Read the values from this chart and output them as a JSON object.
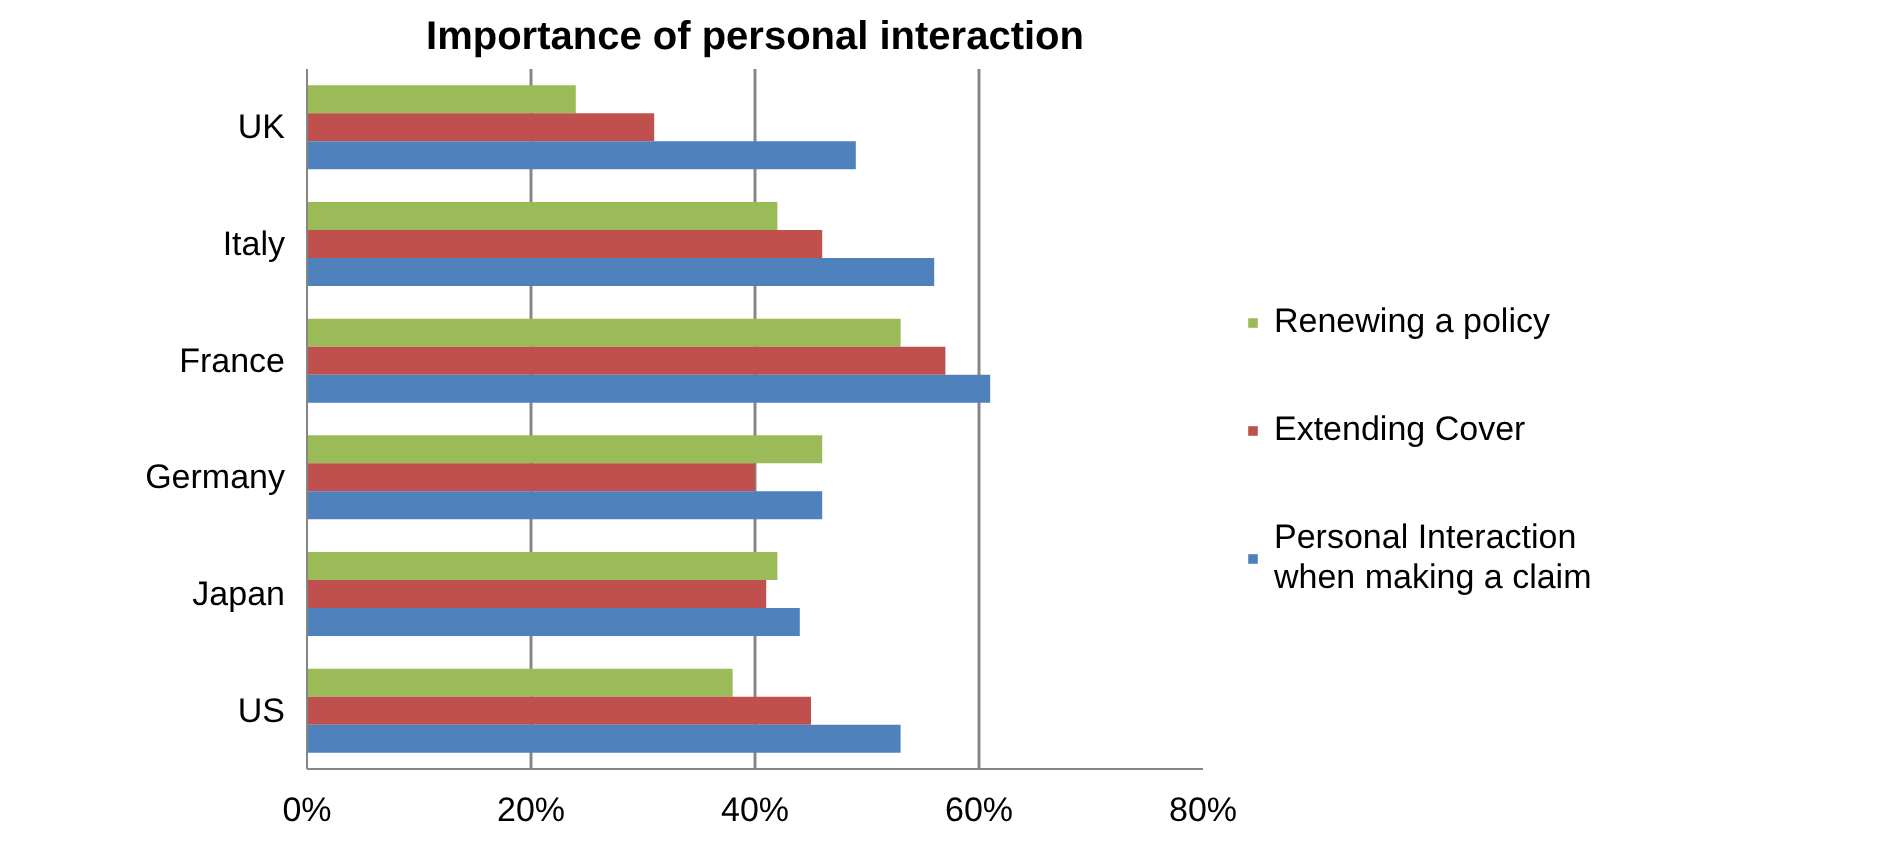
{
  "chart_data": {
    "type": "bar",
    "orientation": "horizontal",
    "title": "Importance of personal interaction",
    "categories": [
      "UK",
      "Italy",
      "France",
      "Germany",
      "Japan",
      "US"
    ],
    "series": [
      {
        "name": "Renewing a policy",
        "color": "#9bbb59",
        "values": [
          24,
          42,
          53,
          46,
          42,
          38
        ]
      },
      {
        "name": "Extending Cover",
        "color": "#c0504d",
        "values": [
          31,
          46,
          57,
          40,
          41,
          45
        ]
      },
      {
        "name": "Personal Interaction when making a claim",
        "color": "#4f81bd",
        "values": [
          49,
          56,
          61,
          46,
          44,
          53
        ]
      }
    ],
    "xlim": [
      0,
      80
    ],
    "xticks": [
      {
        "value": 0,
        "label": "0%"
      },
      {
        "value": 20,
        "label": "20%"
      },
      {
        "value": 40,
        "label": "40%"
      },
      {
        "value": 60,
        "label": "60%"
      },
      {
        "value": 80,
        "label": "80%"
      }
    ],
    "grid": "x",
    "legend": "right"
  }
}
